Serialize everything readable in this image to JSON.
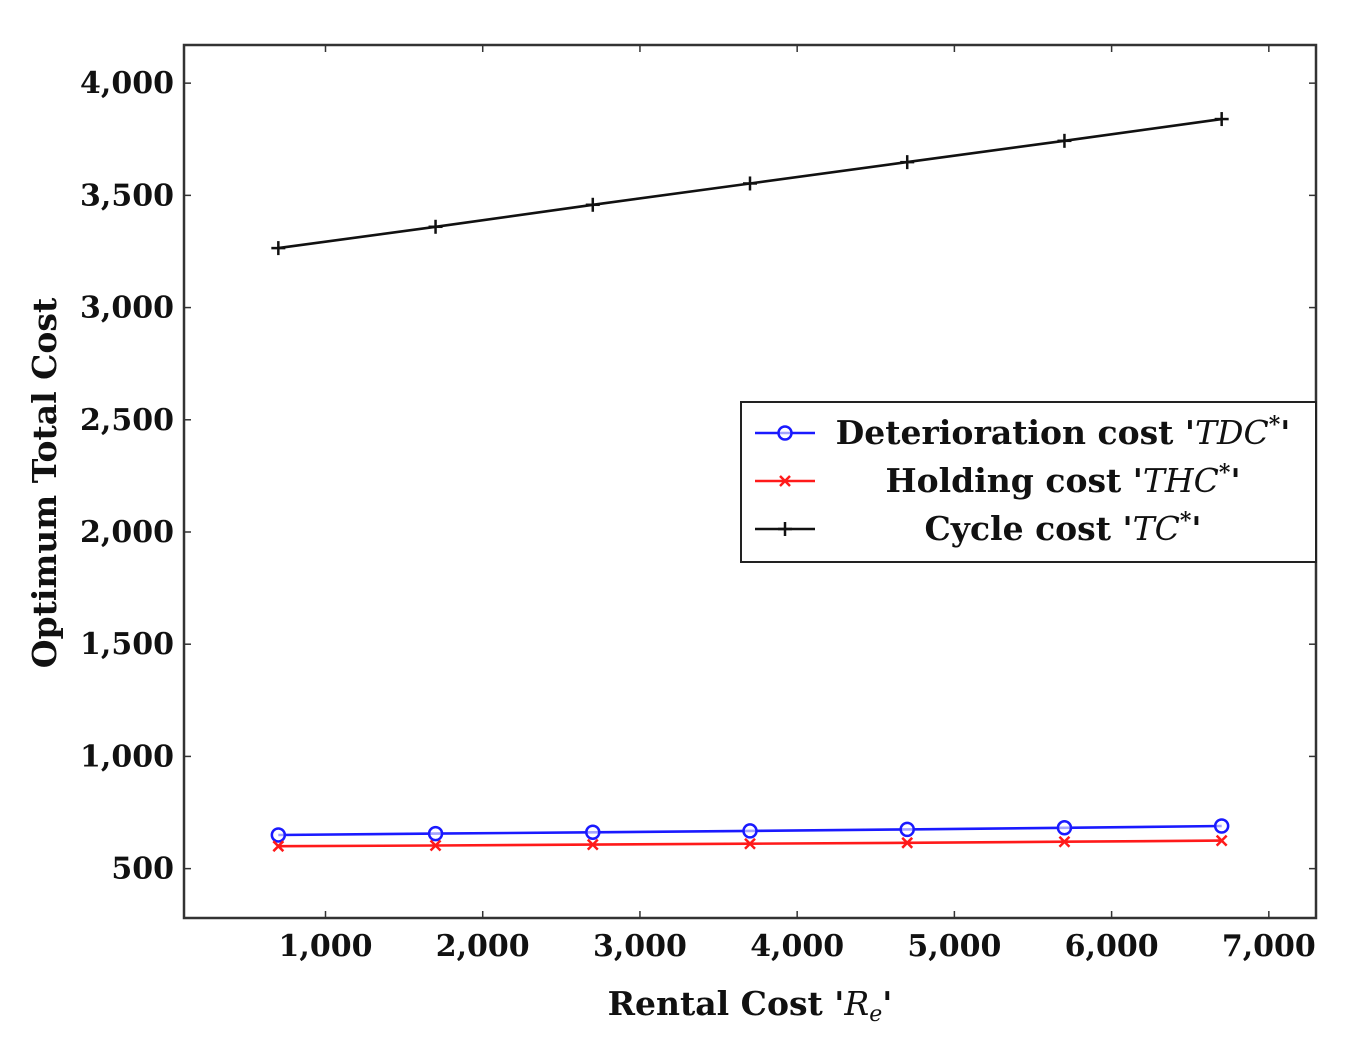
{
  "chart_data": {
    "type": "line",
    "title": "",
    "xlabel_prefix": "Rental Cost '",
    "xlabel_symbol": "R",
    "xlabel_subscript": "e",
    "xlabel_suffix": "'",
    "ylabel": "Optimum Total Cost",
    "xlim": [
      100,
      7300
    ],
    "ylim": [
      280,
      4170
    ],
    "x_ticks": [
      1000,
      2000,
      3000,
      4000,
      5000,
      6000,
      7000
    ],
    "x_tick_labels": [
      "1,000",
      "2,000",
      "3,000",
      "4,000",
      "5,000",
      "6,000",
      "7,000"
    ],
    "y_ticks": [
      500,
      1000,
      1500,
      2000,
      2500,
      3000,
      3500,
      4000
    ],
    "y_tick_labels": [
      "500",
      "1,000",
      "1,500",
      "2,000",
      "2,500",
      "3,000",
      "3,500",
      "4,000"
    ],
    "grid": false,
    "legend_position": "right-middle",
    "x": [
      700,
      1700,
      2700,
      3700,
      4700,
      5700,
      6700
    ],
    "series": [
      {
        "name": "Deterioration cost",
        "label_text": "Deterioration cost '",
        "label_symbol": "TDC",
        "label_sup": "*",
        "label_end": "'",
        "color": "#1a1aff",
        "marker": "circle",
        "values": [
          650,
          656,
          662,
          668,
          675,
          682,
          690
        ]
      },
      {
        "name": "Holding cost",
        "label_text": "Holding cost '",
        "label_symbol": "THC",
        "label_sup": "*",
        "label_end": "'",
        "color": "#ff1a1a",
        "marker": "x",
        "values": [
          600,
          603,
          607,
          611,
          615,
          620,
          625
        ]
      },
      {
        "name": "Cycle cost",
        "label_text": "Cycle cost '",
        "label_symbol": "TC",
        "label_sup": "*",
        "label_end": "'",
        "color": "#111111",
        "marker": "plus",
        "values": [
          3265,
          3360,
          3458,
          3553,
          3648,
          3743,
          3840
        ]
      }
    ]
  }
}
